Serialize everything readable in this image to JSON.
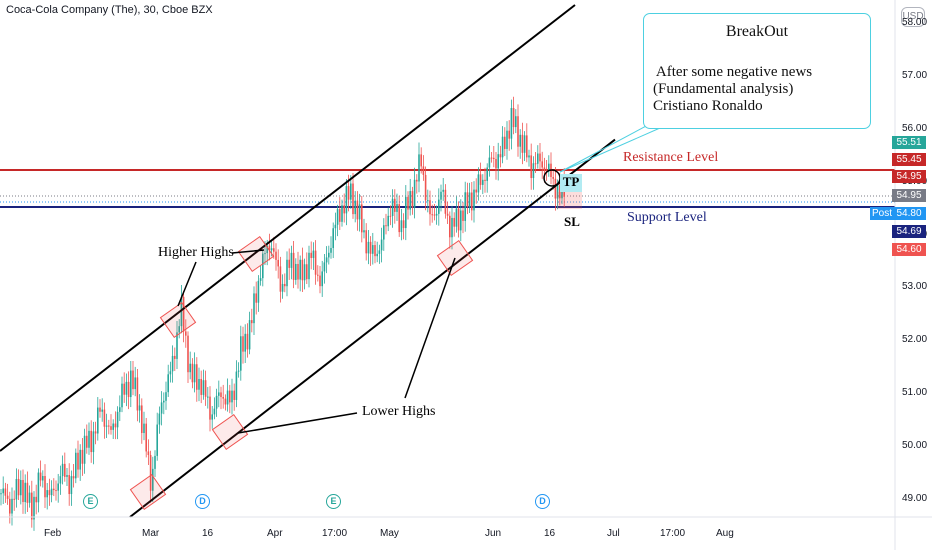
{
  "symbol_title": "Coca-Cola Company (The), 30, Cboe BZX",
  "currency": "USD",
  "callout": {
    "title": "BreakOut",
    "body": " After some negative news\n(Fundamental analysis)\nCristiano Ronaldo"
  },
  "annotations": {
    "resistance": "Resistance Level",
    "support": "Support Level",
    "higher_highs": "Higher Highs",
    "lower_highs": "Lower Highs",
    "tp": "TP",
    "sl": "SL"
  },
  "colors": {
    "up": "#26a69a",
    "down": "#ef5350",
    "resistance": "#c62828",
    "support": "#1a237e",
    "channel": "#000000",
    "callout_border": "#4dd0e1"
  },
  "chart_data": {
    "type": "candlestick",
    "title": "Coca-Cola Company (The), 30, Cboe BZX",
    "ylim": [
      48.65,
      58.35
    ],
    "y_ticks": [
      "58.00",
      "57.00",
      "56.00",
      "55.00",
      "54.00",
      "53.00",
      "52.00",
      "51.00",
      "50.00",
      "49.00"
    ],
    "x_ticks": [
      "Feb",
      "Mar",
      "16",
      "Apr",
      "17:00",
      "May",
      "Jun",
      "16",
      "Jul",
      "17:00",
      "Aug"
    ],
    "price_labels": [
      {
        "text": "55.51",
        "color": "#26a69a"
      },
      {
        "text": "55.45",
        "color": "#c62828"
      },
      {
        "text": "54.95",
        "color": "#c62828"
      },
      {
        "text": "54.95",
        "color": "#787b86"
      },
      {
        "text": "54.80",
        "color": "#2196f3"
      },
      {
        "text": "54.69",
        "color": "#1a237e"
      },
      {
        "text": "54.60",
        "color": "#ef5350"
      }
    ],
    "post_label": "Post",
    "levels": [
      {
        "name": "Resistance Level",
        "price": 55.0
      },
      {
        "name": "Support Level",
        "price": 54.8
      }
    ],
    "price_path": [
      [
        0,
        49.1
      ],
      [
        10,
        48.9
      ],
      [
        20,
        49.3
      ],
      [
        30,
        48.8
      ],
      [
        40,
        49.4
      ],
      [
        50,
        49.0
      ],
      [
        60,
        49.5
      ],
      [
        70,
        49.3
      ],
      [
        80,
        49.9
      ],
      [
        90,
        50.1
      ],
      [
        100,
        50.7
      ],
      [
        110,
        50.2
      ],
      [
        120,
        50.9
      ],
      [
        130,
        51.3
      ],
      [
        140,
        50.6
      ],
      [
        150,
        49.3
      ],
      [
        160,
        50.8
      ],
      [
        170,
        51.4
      ],
      [
        180,
        52.6
      ],
      [
        190,
        51.3
      ],
      [
        200,
        51.2
      ],
      [
        210,
        50.6
      ],
      [
        220,
        51.0
      ],
      [
        230,
        50.8
      ],
      [
        240,
        51.8
      ],
      [
        250,
        52.3
      ],
      [
        260,
        53.4
      ],
      [
        270,
        53.9
      ],
      [
        280,
        53.0
      ],
      [
        290,
        53.5
      ],
      [
        300,
        53.2
      ],
      [
        310,
        53.6
      ],
      [
        320,
        53.1
      ],
      [
        330,
        53.9
      ],
      [
        340,
        54.5
      ],
      [
        350,
        54.8
      ],
      [
        360,
        54.2
      ],
      [
        370,
        53.6
      ],
      [
        380,
        53.8
      ],
      [
        390,
        54.6
      ],
      [
        400,
        54.2
      ],
      [
        410,
        54.7
      ],
      [
        420,
        55.4
      ],
      [
        430,
        54.2
      ],
      [
        440,
        54.8
      ],
      [
        450,
        54.1
      ],
      [
        460,
        54.4
      ],
      [
        470,
        54.7
      ],
      [
        480,
        55.0
      ],
      [
        490,
        55.4
      ],
      [
        500,
        55.5
      ],
      [
        510,
        56.2
      ],
      [
        520,
        55.8
      ],
      [
        530,
        55.3
      ],
      [
        540,
        55.4
      ],
      [
        550,
        55.1
      ],
      [
        560,
        54.7
      ],
      [
        565,
        55.0
      ]
    ],
    "channel_lines": [
      {
        "from": [
          0,
          49.9
        ],
        "to": [
          575,
          58.35
        ]
      },
      {
        "from": [
          130,
          48.65
        ],
        "to": [
          615,
          55.8
        ]
      }
    ],
    "events": [
      {
        "x_index": 0,
        "letter": "E",
        "color": "#26a69a"
      },
      {
        "x_index": 1,
        "letter": "D",
        "color": "#2196f3"
      },
      {
        "x_index": 2,
        "letter": "E",
        "color": "#26a69a"
      },
      {
        "x_index": 3,
        "letter": "D",
        "color": "#2196f3"
      }
    ]
  }
}
